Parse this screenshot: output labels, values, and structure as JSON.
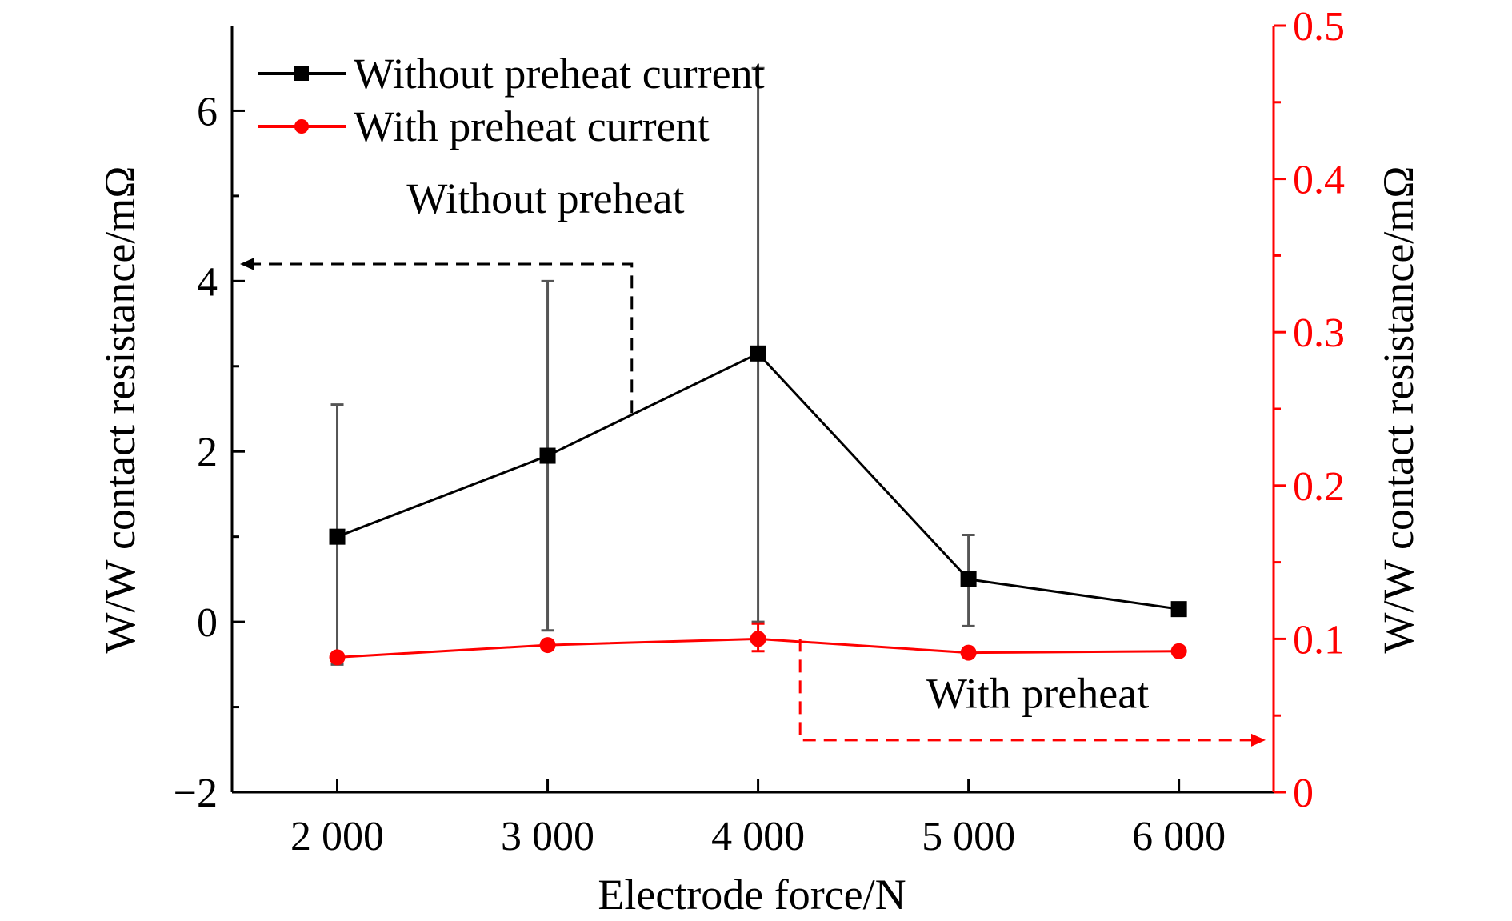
{
  "chart_data": {
    "type": "line",
    "xlabel": "Electrode force/N",
    "ylabel_left": "W/W contact resistance/mΩ",
    "ylabel_right": "W/W contact resistance/mΩ",
    "x": [
      2000,
      3000,
      4000,
      5000,
      6000
    ],
    "x_tick_labels": [
      "2 000",
      "3 000",
      "4 000",
      "5 000",
      "6 000"
    ],
    "xlim": [
      1500,
      6450
    ],
    "ylim_left": [
      -2,
      7
    ],
    "y_left_ticks": [
      -2,
      0,
      2,
      4,
      6
    ],
    "y_left_tick_labels": [
      "−2",
      "0",
      "2",
      "4",
      "6"
    ],
    "ylim_right": [
      0,
      0.5
    ],
    "y_right_ticks": [
      0,
      0.1,
      0.2,
      0.3,
      0.4,
      0.5
    ],
    "y_right_tick_labels": [
      "0",
      "0.1",
      "0.2",
      "0.3",
      "0.4",
      "0.5"
    ],
    "grid": false,
    "legend_position": "top-left",
    "series": [
      {
        "name": "Without preheat current",
        "axis": "left",
        "marker": "square",
        "color": "#000000",
        "values": [
          1.0,
          1.95,
          3.15,
          0.5,
          0.15
        ],
        "err_upper": [
          2.55,
          4.0,
          6.5,
          1.02,
          null
        ],
        "err_lower": [
          -0.5,
          -0.1,
          0.0,
          -0.05,
          null
        ]
      },
      {
        "name": "With preheat current",
        "axis": "right",
        "marker": "circle",
        "color": "#ff0000",
        "values": [
          0.088,
          0.096,
          0.1,
          0.091,
          0.092
        ],
        "err_upper": [
          null,
          null,
          0.11,
          null,
          null
        ],
        "err_lower": [
          null,
          null,
          0.092,
          null,
          null
        ]
      }
    ],
    "annotations": [
      {
        "text": "Without preheat",
        "points_to": "left-axis"
      },
      {
        "text": "With preheat",
        "points_to": "right-axis"
      }
    ]
  }
}
